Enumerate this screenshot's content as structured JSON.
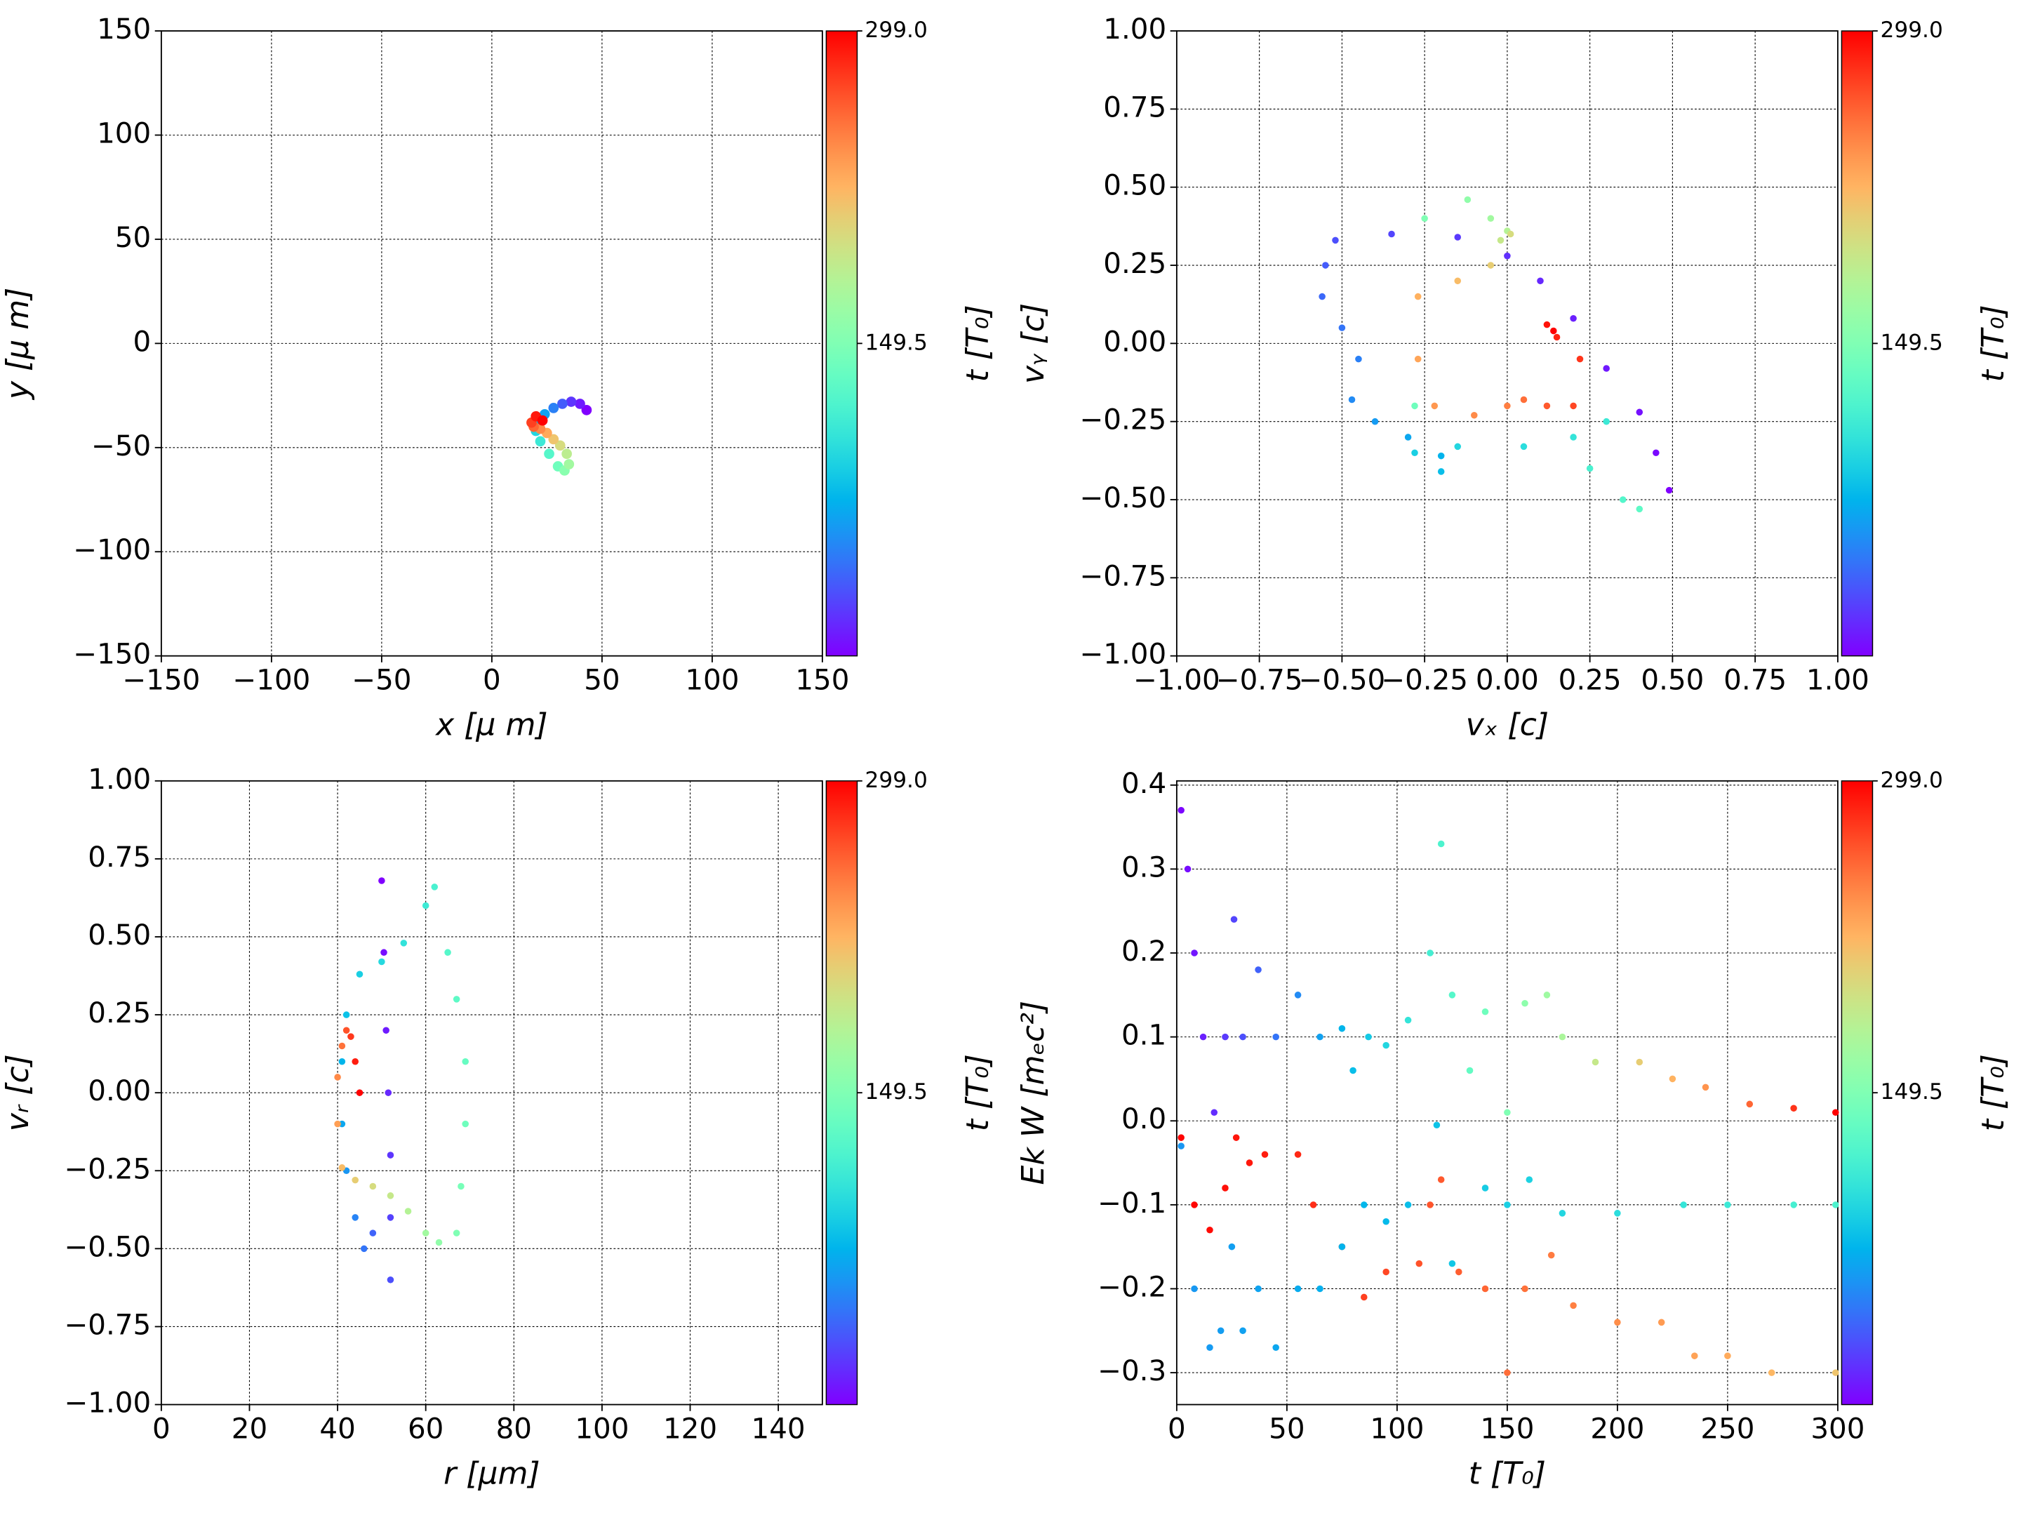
{
  "chart_data": [
    {
      "type": "scatter",
      "xlabel": "x  [μ m]",
      "ylabel": "y  [μ m]",
      "grid": true,
      "xlim": [
        -150,
        150
      ],
      "ylim": [
        -150,
        150
      ],
      "xticks": [
        {
          "value": -150,
          "label": "−150"
        },
        {
          "value": -100,
          "label": "−100"
        },
        {
          "value": -50,
          "label": "−50"
        },
        0,
        50,
        100,
        150
      ],
      "yticks": [
        {
          "value": -150,
          "label": "−150"
        },
        {
          "value": -100,
          "label": "−100"
        },
        {
          "value": -50,
          "label": "−50"
        },
        0,
        50,
        100,
        150
      ],
      "colorbar": {
        "label": "t [T₀]",
        "cmap": "rainbow",
        "lim": [
          0,
          299
        ],
        "ticks": [
          149.5,
          {
            "value": 299,
            "label": "299.0"
          }
        ]
      },
      "series": [
        {
          "x": [
            43,
            40,
            36,
            32,
            28,
            24,
            21,
            20,
            22,
            26,
            30,
            33,
            35,
            34,
            31,
            28,
            25,
            22,
            19,
            18,
            20,
            23
          ],
          "values": [
            -32,
            -29,
            -28,
            -29,
            -31,
            -34,
            -38,
            -42,
            -47,
            -53,
            -59,
            -61,
            -58,
            -53,
            -49,
            -46,
            -43,
            -41,
            -40,
            -38,
            -35,
            -37
          ],
          "c": [
            0,
            10,
            20,
            35,
            50,
            65,
            80,
            95,
            110,
            125,
            140,
            155,
            170,
            185,
            200,
            215,
            230,
            245,
            260,
            275,
            290,
            299
          ]
        }
      ]
    },
    {
      "type": "scatter",
      "xlabel": "vₓ [c]",
      "ylabel": "vᵧ [c]",
      "grid": true,
      "xlim": [
        -1,
        1
      ],
      "ylim": [
        -1,
        1
      ],
      "xticks": [
        {
          "value": -1,
          "label": "−1.00"
        },
        {
          "value": -0.75,
          "label": "−0.75"
        },
        {
          "value": -0.5,
          "label": "−0.50"
        },
        {
          "value": -0.25,
          "label": "−0.25"
        },
        {
          "value": 0,
          "label": "0.00"
        },
        0.25,
        {
          "value": 0.5,
          "label": "0.50"
        },
        0.75,
        {
          "value": 1,
          "label": "1.00"
        }
      ],
      "yticks": [
        {
          "value": -1,
          "label": "−1.00"
        },
        {
          "value": -0.75,
          "label": "−0.75"
        },
        {
          "value": -0.5,
          "label": "−0.50"
        },
        {
          "value": -0.25,
          "label": "−0.25"
        },
        {
          "value": 0,
          "label": "0.00"
        },
        0.25,
        {
          "value": 0.5,
          "label": "0.50"
        },
        0.75,
        {
          "value": 1,
          "label": "1.00"
        }
      ],
      "colorbar": {
        "label": "t [T₀]",
        "cmap": "rainbow",
        "lim": [
          0,
          299
        ],
        "ticks": [
          149.5,
          {
            "value": 299,
            "label": "299.0"
          }
        ]
      },
      "series": [
        {
          "x": [
            0.49,
            0.45,
            0.4,
            0.3,
            0.2,
            0.1,
            0,
            -0.15,
            -0.35,
            -0.52,
            -0.55,
            -0.56,
            -0.5,
            -0.45,
            -0.47,
            -0.4,
            -0.3,
            -0.2,
            -0.2,
            -0.28,
            -0.15,
            0.05,
            0.2,
            0.3,
            0.25,
            0.35,
            0.4,
            -0.28,
            -0.25,
            -0.12,
            -0.05,
            0,
            -0.02,
            0.01,
            -0.05,
            -0.15,
            -0.27,
            -0.27,
            -0.22,
            -0.1,
            0,
            0.05,
            0.12,
            0.2,
            0.22,
            0.15,
            0.12,
            0.14
          ],
          "values": [
            -0.47,
            -0.35,
            -0.22,
            -0.08,
            0.08,
            0.2,
            0.28,
            0.34,
            0.35,
            0.33,
            0.25,
            0.15,
            0.05,
            -0.05,
            -0.18,
            -0.25,
            -0.3,
            -0.36,
            -0.41,
            -0.35,
            -0.33,
            -0.33,
            -0.3,
            -0.25,
            -0.4,
            -0.5,
            -0.53,
            -0.2,
            0.4,
            0.46,
            0.4,
            0.36,
            0.33,
            0.35,
            0.25,
            0.2,
            0.15,
            -0.05,
            -0.2,
            -0.23,
            -0.2,
            -0.18,
            -0.2,
            -0.2,
            -0.05,
            0.02,
            0.06,
            0.04
          ],
          "c": [
            0,
            3,
            6,
            9,
            12,
            15,
            18,
            22,
            26,
            30,
            35,
            40,
            45,
            50,
            55,
            62,
            68,
            74,
            80,
            90,
            95,
            100,
            105,
            110,
            118,
            124,
            130,
            140,
            150,
            160,
            170,
            180,
            190,
            200,
            210,
            220,
            226,
            232,
            238,
            244,
            250,
            256,
            265,
            272,
            279,
            286,
            292,
            299
          ]
        }
      ]
    },
    {
      "type": "scatter",
      "xlabel": "r [μm]",
      "ylabel": "vᵣ [c]",
      "grid": true,
      "xlim": [
        0,
        150
      ],
      "ylim": [
        -1,
        1
      ],
      "xticks": [
        0,
        20,
        40,
        60,
        80,
        100,
        120,
        140
      ],
      "yticks": [
        {
          "value": -1,
          "label": "−1.00"
        },
        {
          "value": -0.75,
          "label": "−0.75"
        },
        {
          "value": -0.5,
          "label": "−0.50"
        },
        {
          "value": -0.25,
          "label": "−0.25"
        },
        {
          "value": 0,
          "label": "0.00"
        },
        0.25,
        {
          "value": 0.5,
          "label": "0.50"
        },
        0.75,
        {
          "value": 1,
          "label": "1.00"
        }
      ],
      "colorbar": {
        "label": "t [T₀]",
        "cmap": "rainbow",
        "lim": [
          0,
          299
        ],
        "ticks": [
          149.5,
          {
            "value": 299,
            "label": "299.0"
          }
        ]
      },
      "series": [
        {
          "x": [
            50,
            50.5,
            51,
            51.5,
            52,
            52,
            52,
            48,
            46,
            44,
            42,
            41,
            41,
            42,
            45,
            50,
            55,
            60,
            62,
            65,
            67,
            69,
            69,
            68,
            67,
            63,
            60,
            56,
            52,
            48,
            44,
            41,
            40,
            40,
            41,
            42,
            43,
            44,
            45
          ],
          "values": [
            0.68,
            0.45,
            0.2,
            0,
            -0.2,
            -0.4,
            -0.6,
            -0.45,
            -0.5,
            -0.4,
            -0.25,
            -0.1,
            0.1,
            0.25,
            0.38,
            0.42,
            0.48,
            0.6,
            0.66,
            0.45,
            0.3,
            0.1,
            -0.1,
            -0.3,
            -0.45,
            -0.48,
            -0.45,
            -0.38,
            -0.33,
            -0.3,
            -0.28,
            -0.24,
            -0.1,
            0.05,
            0.15,
            0.2,
            0.18,
            0.1,
            0
          ],
          "c": [
            0,
            5,
            10,
            15,
            20,
            25,
            30,
            38,
            45,
            52,
            60,
            68,
            75,
            82,
            90,
            97,
            104,
            111,
            118,
            125,
            130,
            135,
            140,
            145,
            150,
            160,
            170,
            180,
            190,
            200,
            210,
            220,
            235,
            245,
            255,
            268,
            278,
            288,
            299
          ]
        }
      ]
    },
    {
      "type": "scatter",
      "xlabel": "t [T₀]",
      "ylabel": "Ek W [mₑc²]",
      "grid": true,
      "xlim": [
        0,
        300
      ],
      "ylim": [
        -0.338,
        0.405
      ],
      "xticks": [
        0,
        50,
        100,
        150,
        200,
        250,
        300
      ],
      "yticks": [
        {
          "value": -0.3,
          "label": "−0.3"
        },
        {
          "value": -0.2,
          "label": "−0.2"
        },
        {
          "value": -0.1,
          "label": "−0.1"
        },
        {
          "value": 0,
          "label": "0.0"
        },
        0.1,
        0.2,
        0.3,
        0.4
      ],
      "colorbar": {
        "label": "t [T₀]",
        "cmap": "rainbow",
        "lim": [
          0,
          299
        ],
        "ticks": [
          149.5,
          {
            "value": 299,
            "label": "299.0"
          }
        ]
      },
      "series": [
        {
          "x": [
            2,
            5,
            8,
            12,
            17,
            22,
            26,
            30,
            37,
            45,
            55,
            65,
            75,
            80,
            87,
            95,
            105,
            115,
            120,
            125,
            133,
            140,
            150,
            158,
            168,
            175,
            190,
            210,
            225,
            240,
            260,
            280,
            299
          ],
          "values": [
            0.37,
            0.3,
            0.2,
            0.1,
            0.01,
            0.1,
            0.24,
            0.1,
            0.18,
            0.1,
            0.15,
            0.1,
            0.11,
            0.06,
            0.1,
            0.09,
            0.12,
            0.2,
            0.33,
            0.15,
            0.06,
            0.13,
            0.01,
            0.14,
            0.15,
            0.1,
            0.07,
            0.07,
            0.05,
            0.04,
            0.02,
            0.015,
            0.01
          ],
          "c": [
            2,
            5,
            8,
            12,
            17,
            22,
            26,
            30,
            37,
            45,
            55,
            65,
            75,
            80,
            87,
            95,
            105,
            115,
            120,
            125,
            133,
            140,
            150,
            158,
            168,
            175,
            190,
            210,
            225,
            240,
            260,
            280,
            299
          ]
        },
        {
          "x": [
            2,
            8,
            15,
            22,
            27,
            33,
            40,
            55,
            62,
            75,
            85,
            95,
            110,
            115,
            120,
            128,
            140,
            150,
            158,
            170,
            180,
            200,
            220,
            235,
            250,
            270,
            299
          ],
          "values": [
            -0.02,
            -0.1,
            -0.13,
            -0.08,
            -0.02,
            -0.05,
            -0.04,
            -0.04,
            -0.1,
            -0.15,
            -0.21,
            -0.18,
            -0.17,
            -0.1,
            -0.07,
            -0.18,
            -0.2,
            -0.3,
            -0.2,
            -0.16,
            -0.22,
            -0.24,
            -0.24,
            -0.28,
            -0.28,
            -0.3,
            -0.3
          ],
          "c": [
            298,
            297,
            295,
            293,
            291,
            290,
            288,
            284,
            282,
            278,
            275,
            272,
            268,
            267,
            265,
            263,
            260,
            257,
            255,
            251,
            249,
            243,
            237,
            233,
            229,
            223,
            215
          ]
        },
        {
          "x": [
            2,
            8,
            15,
            20,
            25,
            30,
            37,
            45,
            55,
            65,
            75,
            85,
            95,
            105,
            118,
            125,
            140,
            150,
            160,
            175,
            200,
            230,
            250,
            280,
            299
          ],
          "values": [
            -0.03,
            -0.2,
            -0.27,
            -0.25,
            -0.15,
            -0.25,
            -0.2,
            -0.27,
            -0.2,
            -0.2,
            -0.15,
            -0.1,
            -0.12,
            -0.1,
            -0.005,
            -0.17,
            -0.08,
            -0.1,
            -0.07,
            -0.11,
            -0.11,
            -0.1,
            -0.1,
            -0.1,
            -0.1
          ],
          "c": [
            60,
            61,
            62,
            63,
            64,
            65,
            66,
            68,
            70,
            72,
            74,
            76,
            78,
            80,
            83,
            85,
            88,
            90,
            92,
            95,
            100,
            106,
            110,
            116,
            120
          ]
        }
      ]
    }
  ]
}
